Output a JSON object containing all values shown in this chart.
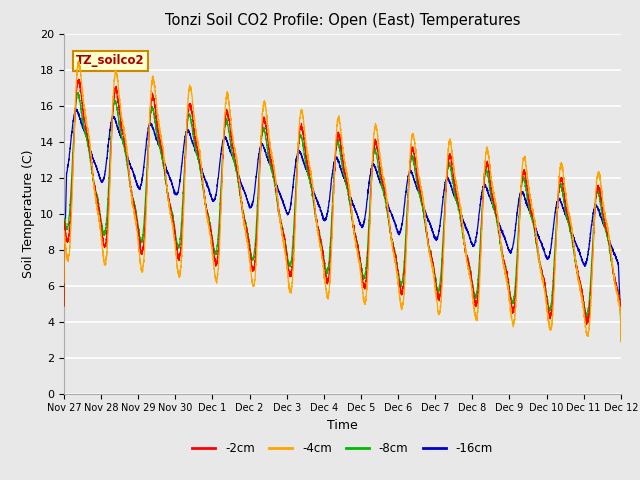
{
  "title": "Tonzi Soil CO2 Profile: Open (East) Temperatures",
  "xlabel": "Time",
  "ylabel": "Soil Temperature (C)",
  "ylim": [
    0,
    20
  ],
  "xlim_days": [
    0,
    15
  ],
  "background_color": "#e8e8e8",
  "grid_color": "#ffffff",
  "series": [
    {
      "label": "-2cm",
      "color": "#ff0000"
    },
    {
      "label": "-4cm",
      "color": "#ffa500"
    },
    {
      "label": "-8cm",
      "color": "#00bb00"
    },
    {
      "label": "-16cm",
      "color": "#0000cc"
    }
  ],
  "annotation_text": "TZ_soilco2",
  "annotation_bg": "#ffffcc",
  "annotation_border": "#cc8800",
  "tick_labels": [
    "Nov 27",
    "Nov 28",
    "Nov 29",
    "Nov 30",
    "Dec 1",
    "Dec 2",
    "Dec 3",
    "Dec 4",
    "Dec 5",
    "Dec 6",
    "Dec 7",
    "Dec 8",
    "Dec 9",
    "Dec 10",
    "Dec 11",
    "Dec 12"
  ],
  "tick_positions": [
    0,
    1,
    2,
    3,
    4,
    5,
    6,
    7,
    8,
    9,
    10,
    11,
    12,
    13,
    14,
    15
  ]
}
